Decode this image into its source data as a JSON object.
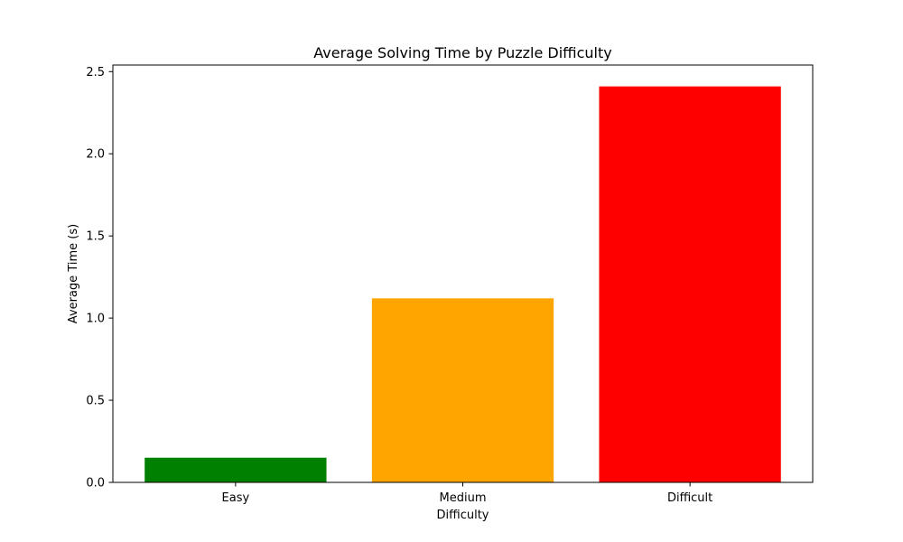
{
  "chart_data": {
    "type": "bar",
    "title": "Average Solving Time by Puzzle Difficulty",
    "xlabel": "Difficulty",
    "ylabel": "Average Time (s)",
    "categories": [
      "Easy",
      "Medium",
      "Difficult"
    ],
    "values": [
      0.15,
      1.12,
      2.41
    ],
    "colors": [
      "#008000",
      "#ffa500",
      "#ff0000"
    ],
    "ylim": [
      0,
      2.54
    ],
    "yticks": [
      0.0,
      0.5,
      1.0,
      1.5,
      2.0,
      2.5
    ],
    "ytick_labels": [
      "0.0",
      "0.5",
      "1.0",
      "1.5",
      "2.0",
      "2.5"
    ],
    "grid": false,
    "legend": "none"
  }
}
